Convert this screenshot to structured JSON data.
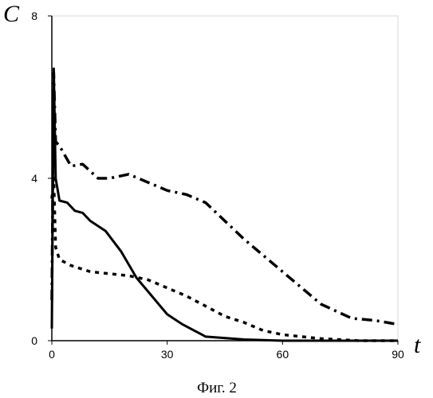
{
  "chart_data": {
    "type": "line",
    "title": "",
    "xlabel": "t",
    "ylabel": "C",
    "caption": "Фиг. 2",
    "xlim": [
      0,
      90
    ],
    "ylim": [
      0,
      8
    ],
    "xticks": [
      "0",
      "30",
      "60",
      "90"
    ],
    "yticks": [
      "0",
      "4",
      "8"
    ],
    "grid": false,
    "legend": "none",
    "series": [
      {
        "style": "solid",
        "color": "#000000",
        "x": [
          0,
          0.5,
          1,
          2,
          4,
          6,
          8,
          10,
          14,
          18,
          22,
          26,
          30,
          34,
          40,
          50,
          60,
          70,
          80,
          90
        ],
        "y": [
          0.3,
          6.7,
          4.0,
          3.45,
          3.4,
          3.2,
          3.15,
          2.95,
          2.7,
          2.2,
          1.55,
          1.1,
          0.65,
          0.4,
          0.1,
          0.03,
          0.0,
          0.0,
          0.0,
          0.0
        ]
      },
      {
        "style": "dash-dot",
        "color": "#000000",
        "x": [
          0,
          0.5,
          1,
          2,
          5,
          8,
          12,
          15,
          20,
          25,
          30,
          35,
          40,
          50,
          60,
          70,
          78,
          84,
          90
        ],
        "y": [
          1.0,
          6.6,
          4.9,
          4.8,
          4.3,
          4.35,
          4.0,
          4.0,
          4.1,
          3.9,
          3.7,
          3.6,
          3.4,
          2.5,
          1.7,
          0.9,
          0.55,
          0.5,
          0.4
        ]
      },
      {
        "style": "dotted",
        "color": "#000000",
        "x": [
          0,
          0.5,
          1,
          2,
          5,
          10,
          15,
          20,
          25,
          30,
          35,
          40,
          45,
          50,
          55,
          60,
          70,
          80,
          90
        ],
        "y": [
          3.5,
          4.0,
          2.3,
          2.0,
          1.85,
          1.7,
          1.65,
          1.6,
          1.5,
          1.3,
          1.1,
          0.85,
          0.6,
          0.45,
          0.25,
          0.15,
          0.05,
          0.0,
          0.0
        ]
      }
    ]
  }
}
